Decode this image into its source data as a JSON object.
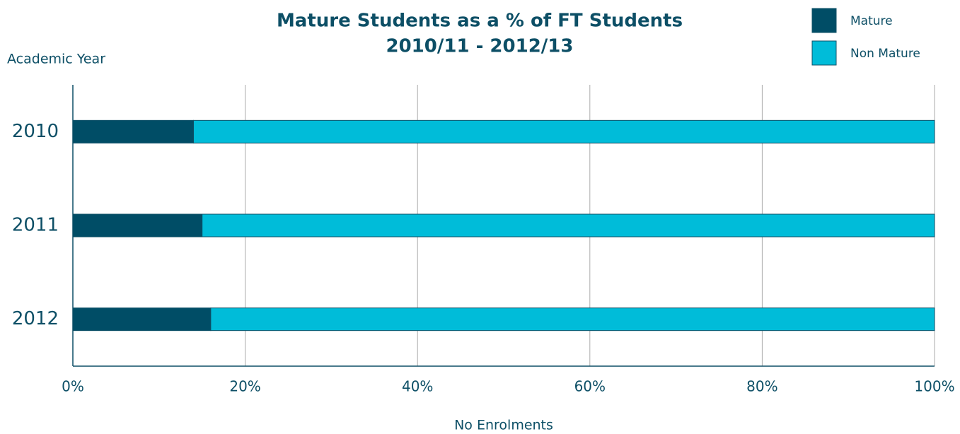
{
  "chart_data": {
    "type": "stacked_bar_horizontal",
    "title": "Mature Students as a % of FT Students",
    "subtitle": "2010/11 - 2012/13",
    "y_label": "Academic Year",
    "x_label": "No Enrolments",
    "categories": [
      "2010",
      "2011",
      "2012"
    ],
    "series": [
      {
        "name": "Mature",
        "color": "#004d66",
        "values": [
          14,
          15,
          16
        ]
      },
      {
        "name": "Non Mature",
        "color": "#00bcd9",
        "values": [
          86,
          85,
          84
        ]
      }
    ],
    "xlim": [
      0,
      100
    ],
    "xticks": [
      {
        "value": 0,
        "label": "0%"
      },
      {
        "value": 20,
        "label": "20%"
      },
      {
        "value": 40,
        "label": "40%"
      },
      {
        "value": 60,
        "label": "60%"
      },
      {
        "value": 80,
        "label": "80%"
      },
      {
        "value": 100,
        "label": "100%"
      }
    ],
    "grid": true,
    "legend": "top-right"
  }
}
